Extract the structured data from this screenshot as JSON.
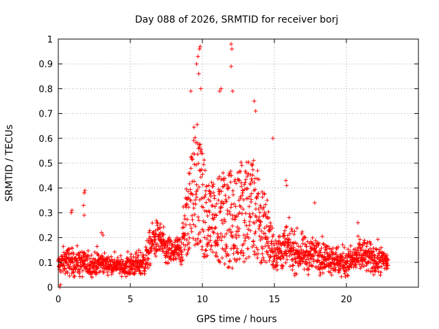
{
  "chart_data": {
    "type": "scatter",
    "title": "Day 088 of 2026, SRMTID for receiver borj",
    "xlabel": "GPS time / hours",
    "ylabel": "SRMTID / TECUs",
    "xlim": [
      0,
      25
    ],
    "ylim": [
      0,
      1
    ],
    "xticks": [
      0,
      5,
      10,
      15,
      20
    ],
    "xtick_labels": [
      "0",
      "5",
      "10",
      "15",
      "20"
    ],
    "yticks": [
      0,
      0.1,
      0.2,
      0.3,
      0.4,
      0.5,
      0.6,
      0.7,
      0.8,
      0.9,
      1
    ],
    "ytick_labels": [
      "0",
      "0.1",
      "0.2",
      "0.3",
      "0.4",
      "0.5",
      "0.6",
      "0.7",
      "0.8",
      "0.9",
      "1"
    ],
    "grid": true,
    "marker": "+",
    "color": "#ff0000",
    "envelope": {
      "description": "approximate per-hour distribution of SRMTID values read from the plot",
      "hours": [
        0,
        0.5,
        1,
        1.5,
        2,
        2.5,
        3,
        3.5,
        4,
        4.5,
        5,
        5.5,
        6,
        6.5,
        7,
        7.5,
        8,
        8.5,
        9,
        9.5,
        10,
        10.5,
        11,
        11.5,
        12,
        12.5,
        13,
        13.5,
        14,
        14.5,
        15,
        15.5,
        16,
        16.5,
        17,
        17.5,
        18,
        18.5,
        19,
        19.5,
        20,
        20.5,
        21,
        21.5,
        22,
        22.5,
        22.9
      ],
      "median": [
        0.09,
        0.11,
        0.1,
        0.1,
        0.09,
        0.09,
        0.1,
        0.09,
        0.09,
        0.08,
        0.09,
        0.09,
        0.1,
        0.18,
        0.2,
        0.14,
        0.14,
        0.15,
        0.28,
        0.4,
        0.3,
        0.25,
        0.25,
        0.26,
        0.25,
        0.3,
        0.28,
        0.32,
        0.25,
        0.22,
        0.14,
        0.15,
        0.16,
        0.14,
        0.13,
        0.13,
        0.14,
        0.12,
        0.12,
        0.1,
        0.1,
        0.11,
        0.13,
        0.12,
        0.11,
        0.11,
        0.1
      ],
      "spread": [
        0.03,
        0.05,
        0.04,
        0.05,
        0.04,
        0.04,
        0.04,
        0.03,
        0.03,
        0.03,
        0.04,
        0.04,
        0.05,
        0.06,
        0.06,
        0.05,
        0.05,
        0.05,
        0.15,
        0.25,
        0.2,
        0.15,
        0.15,
        0.18,
        0.18,
        0.2,
        0.18,
        0.18,
        0.16,
        0.12,
        0.06,
        0.07,
        0.07,
        0.06,
        0.06,
        0.05,
        0.06,
        0.05,
        0.05,
        0.05,
        0.05,
        0.05,
        0.06,
        0.05,
        0.05,
        0.04,
        0.03
      ]
    },
    "notable_points": [
      {
        "x": 0.1,
        "y": 0.0
      },
      {
        "x": 0.15,
        "y": 0.01
      },
      {
        "x": 0.9,
        "y": 0.3
      },
      {
        "x": 0.95,
        "y": 0.31
      },
      {
        "x": 1.8,
        "y": 0.38
      },
      {
        "x": 1.85,
        "y": 0.39
      },
      {
        "x": 1.75,
        "y": 0.33
      },
      {
        "x": 1.8,
        "y": 0.29
      },
      {
        "x": 3.0,
        "y": 0.22
      },
      {
        "x": 3.1,
        "y": 0.21
      },
      {
        "x": 9.2,
        "y": 0.79
      },
      {
        "x": 9.6,
        "y": 0.9
      },
      {
        "x": 9.7,
        "y": 0.93
      },
      {
        "x": 9.8,
        "y": 0.96
      },
      {
        "x": 9.85,
        "y": 0.97
      },
      {
        "x": 9.75,
        "y": 0.86
      },
      {
        "x": 9.9,
        "y": 0.8
      },
      {
        "x": 11.2,
        "y": 0.79
      },
      {
        "x": 11.3,
        "y": 0.8
      },
      {
        "x": 12.0,
        "y": 0.98
      },
      {
        "x": 12.05,
        "y": 0.96
      },
      {
        "x": 12.0,
        "y": 0.89
      },
      {
        "x": 12.1,
        "y": 0.79
      },
      {
        "x": 13.6,
        "y": 0.75
      },
      {
        "x": 13.7,
        "y": 0.71
      },
      {
        "x": 14.9,
        "y": 0.6
      },
      {
        "x": 15.8,
        "y": 0.43
      },
      {
        "x": 15.85,
        "y": 0.41
      },
      {
        "x": 17.8,
        "y": 0.34
      },
      {
        "x": 20.8,
        "y": 0.26
      }
    ]
  }
}
